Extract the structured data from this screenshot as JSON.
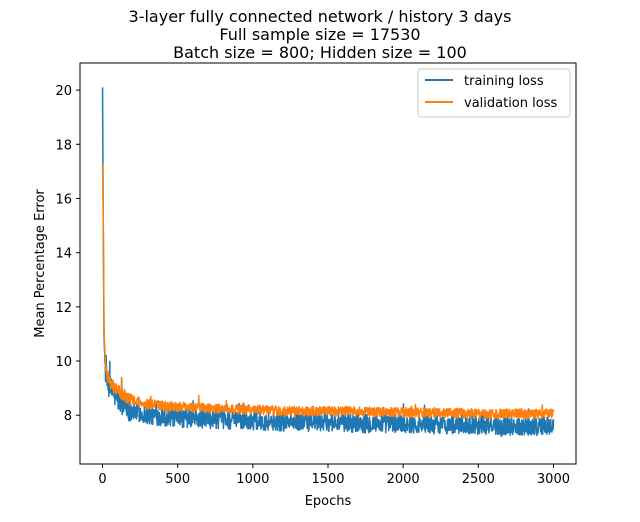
{
  "chart_data": {
    "type": "line",
    "title": [
      "3-layer fully connected network / history 3 days",
      "Full sample size = 17530",
      "Batch size = 800; Hidden size = 100"
    ],
    "xlabel": "Epochs",
    "ylabel": "Mean Percentage Error",
    "xlim": [
      -150,
      3150
    ],
    "ylim": [
      6.2,
      21.0
    ],
    "xticks": [
      0,
      500,
      1000,
      1500,
      2000,
      2500,
      3000
    ],
    "yticks": [
      8,
      10,
      12,
      14,
      16,
      18,
      20
    ],
    "grid": false,
    "legend_position": "upper right",
    "series": [
      {
        "name": "training loss",
        "color": "#1f77b4",
        "noise_amplitude": 0.35,
        "x": [
          0,
          5,
          10,
          20,
          30,
          50,
          100,
          200,
          300,
          500,
          750,
          1000,
          1250,
          1500,
          1750,
          2000,
          2250,
          2500,
          2750,
          3000
        ],
        "y": [
          20.1,
          14.5,
          10.8,
          9.6,
          9.2,
          9.0,
          8.6,
          8.15,
          8.0,
          7.9,
          7.85,
          7.8,
          7.75,
          7.75,
          7.7,
          7.7,
          7.65,
          7.65,
          7.6,
          7.6
        ]
      },
      {
        "name": "validation loss",
        "color": "#ff7f0e",
        "noise_amplitude": 0.18,
        "x": [
          0,
          5,
          10,
          20,
          30,
          50,
          100,
          200,
          300,
          500,
          750,
          1000,
          1250,
          1500,
          1750,
          2000,
          2250,
          2500,
          2750,
          3000
        ],
        "y": [
          17.3,
          15.5,
          11.0,
          9.9,
          9.5,
          9.2,
          8.9,
          8.55,
          8.4,
          8.3,
          8.25,
          8.2,
          8.15,
          8.15,
          8.15,
          8.1,
          8.1,
          8.05,
          8.05,
          8.05
        ]
      }
    ]
  }
}
